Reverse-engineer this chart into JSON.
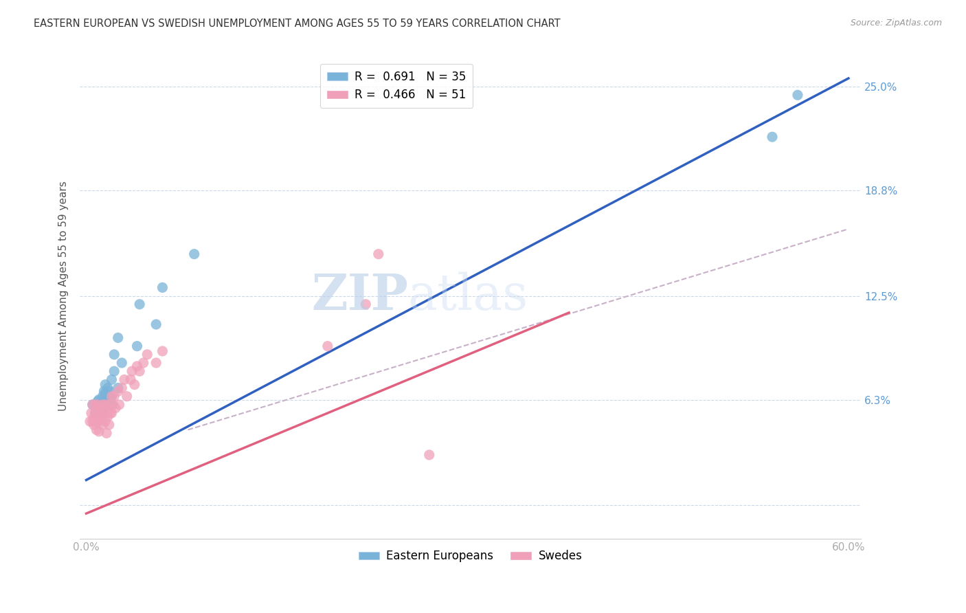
{
  "title": "EASTERN EUROPEAN VS SWEDISH UNEMPLOYMENT AMONG AGES 55 TO 59 YEARS CORRELATION CHART",
  "source": "Source: ZipAtlas.com",
  "ylabel": "Unemployment Among Ages 55 to 59 years",
  "x_ticks": [
    0.0,
    0.1,
    0.2,
    0.3,
    0.4,
    0.5,
    0.6
  ],
  "x_tick_labels": [
    "0.0%",
    "",
    "",
    "",
    "",
    "",
    "60.0%"
  ],
  "y_ticks": [
    0.0,
    0.063,
    0.125,
    0.188,
    0.25
  ],
  "y_tick_labels": [
    "",
    "6.3%",
    "12.5%",
    "18.8%",
    "25.0%"
  ],
  "xlim": [
    -0.005,
    0.61
  ],
  "ylim": [
    -0.02,
    0.27
  ],
  "watermark_zip": "ZIP",
  "watermark_atlas": "atlas",
  "watermark_color": "#ccd9ee",
  "blue_dot_color": "#7ab3d9",
  "pink_dot_color": "#f0a0b8",
  "blue_line_color": "#3060c0",
  "pink_line_color": "#e06080",
  "dashed_line_color": "#c8b0c8",
  "title_fontsize": 10.5,
  "tick_color_right": "#5b9bd5",
  "tick_color_bottom": "#aaaaaa",
  "legend_r1": "R =  0.691   N = 35",
  "legend_r2": "R =  0.466   N = 51",
  "blue_line_x0": 0.0,
  "blue_line_y0": 0.015,
  "blue_line_x1": 0.6,
  "blue_line_y1": 0.255,
  "pink_line_x0": 0.0,
  "pink_line_y0": -0.005,
  "pink_line_x1": 0.38,
  "pink_line_y1": 0.115,
  "dash_line_x0": 0.08,
  "dash_line_y0": 0.045,
  "dash_line_x1": 0.6,
  "dash_line_y1": 0.165,
  "eastern_europeans_x": [
    0.005,
    0.007,
    0.008,
    0.009,
    0.01,
    0.01,
    0.011,
    0.012,
    0.013,
    0.013,
    0.014,
    0.014,
    0.015,
    0.015,
    0.015,
    0.016,
    0.017,
    0.018,
    0.018,
    0.019,
    0.02,
    0.02,
    0.02,
    0.022,
    0.022,
    0.025,
    0.025,
    0.028,
    0.04,
    0.042,
    0.055,
    0.06,
    0.085,
    0.54,
    0.56
  ],
  "eastern_europeans_y": [
    0.06,
    0.055,
    0.058,
    0.062,
    0.063,
    0.058,
    0.06,
    0.057,
    0.055,
    0.065,
    0.062,
    0.068,
    0.06,
    0.067,
    0.072,
    0.063,
    0.07,
    0.062,
    0.068,
    0.065,
    0.06,
    0.075,
    0.065,
    0.09,
    0.08,
    0.1,
    0.07,
    0.085,
    0.095,
    0.12,
    0.108,
    0.13,
    0.15,
    0.22,
    0.245
  ],
  "swedes_x": [
    0.003,
    0.004,
    0.005,
    0.005,
    0.006,
    0.006,
    0.007,
    0.007,
    0.008,
    0.008,
    0.009,
    0.009,
    0.01,
    0.01,
    0.01,
    0.011,
    0.012,
    0.013,
    0.013,
    0.014,
    0.015,
    0.015,
    0.016,
    0.016,
    0.017,
    0.018,
    0.018,
    0.019,
    0.02,
    0.02,
    0.021,
    0.022,
    0.023,
    0.025,
    0.026,
    0.028,
    0.03,
    0.032,
    0.035,
    0.036,
    0.038,
    0.04,
    0.042,
    0.045,
    0.048,
    0.055,
    0.06,
    0.19,
    0.22,
    0.23,
    0.27
  ],
  "swedes_y": [
    0.05,
    0.055,
    0.05,
    0.06,
    0.052,
    0.048,
    0.06,
    0.055,
    0.05,
    0.045,
    0.06,
    0.053,
    0.055,
    0.05,
    0.044,
    0.058,
    0.052,
    0.06,
    0.048,
    0.055,
    0.06,
    0.05,
    0.055,
    0.043,
    0.053,
    0.06,
    0.048,
    0.055,
    0.065,
    0.055,
    0.06,
    0.065,
    0.058,
    0.068,
    0.06,
    0.07,
    0.075,
    0.065,
    0.075,
    0.08,
    0.072,
    0.083,
    0.08,
    0.085,
    0.09,
    0.085,
    0.092,
    0.095,
    0.12,
    0.15,
    0.03
  ]
}
